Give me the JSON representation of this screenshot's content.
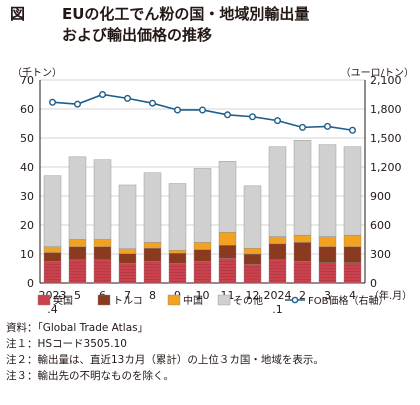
{
  "title": {
    "fig_label": "図",
    "line1": "EUの化工でん粉の国・地域別輸出量",
    "line2": "および輸出価格の推移"
  },
  "units": {
    "left": "（千トン）",
    "right": "（ユーロ/トン）",
    "x_unit": "（年.月）"
  },
  "colors": {
    "英国": "#c9424e",
    "トルコ": "#8a3a1e",
    "中国": "#f2a121",
    "その他": "#d0d0d0",
    "FOB価格": "#1d5e8c",
    "grid": "#c8c8c8",
    "axis": "#231815"
  },
  "chart_data": {
    "type": "bar",
    "stacked": true,
    "categories": [
      "2023\n.4",
      "5",
      "6",
      "7",
      "8",
      "9",
      "10",
      "11",
      "12",
      "2024\n.1",
      "2",
      "3",
      "4"
    ],
    "series": [
      {
        "name": "英国",
        "values": [
          7.5,
          8.0,
          8.0,
          6.8,
          7.5,
          6.8,
          7.5,
          8.5,
          6.5,
          8.0,
          7.5,
          7.0,
          7.0
        ]
      },
      {
        "name": "トルコ",
        "values": [
          3.0,
          4.5,
          4.5,
          3.3,
          4.5,
          3.5,
          4.0,
          4.5,
          3.5,
          5.5,
          6.5,
          5.5,
          5.5
        ]
      },
      {
        "name": "中国",
        "values": [
          2.0,
          2.5,
          2.5,
          1.7,
          2.0,
          1.0,
          2.5,
          4.5,
          2.0,
          2.5,
          2.5,
          3.5,
          4.0
        ]
      },
      {
        "name": "その他",
        "values": [
          24.5,
          28.5,
          27.5,
          22.0,
          24.0,
          23.0,
          25.5,
          24.5,
          21.5,
          31.0,
          32.7,
          31.7,
          30.5
        ]
      },
      {
        "name": "FOB価格（右軸）",
        "axis": "right",
        "values": [
          1870,
          1850,
          1950,
          1910,
          1860,
          1790,
          1790,
          1740,
          1720,
          1680,
          1610,
          1620,
          1580
        ]
      }
    ],
    "ylim": [
      0,
      70
    ],
    "yticks": [
      0,
      10,
      20,
      30,
      40,
      50,
      60,
      70
    ],
    "y2lim": [
      0,
      2100
    ],
    "y2ticks": [
      0,
      300,
      600,
      900,
      1200,
      1500,
      1800,
      2100
    ],
    "grid": true,
    "legend": "bottom"
  },
  "notes": {
    "source": "資料：「Global Trade Atlas」",
    "note1": "注１：HSコード3505.10",
    "note2": "注２：輸出量は、直近13カ月（累計）の上位３カ国・地域を表示。",
    "note3": "注３：輸出先の不明なものを除く。"
  }
}
